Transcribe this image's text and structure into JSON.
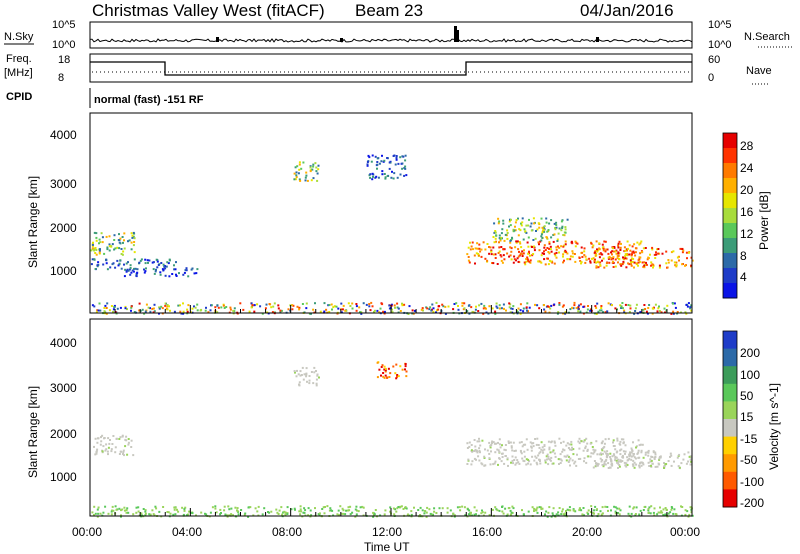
{
  "header": {
    "station": "Christmas Valley West (fitACF)",
    "beam": "Beam 23",
    "date": "04/Jan/2016"
  },
  "top_panels": {
    "nsky_label": "N.Sky",
    "nsearch_label": "N.Search",
    "noise_ticks_left": [
      "10^5",
      "10^0"
    ],
    "noise_ticks_right": [
      "10^5",
      "10^0"
    ],
    "freq_label": "Freq.",
    "freq_unit": "[MHz]",
    "freq_ticks": [
      "18",
      "8"
    ],
    "nave_ticks": [
      "60",
      "0"
    ],
    "nave_label": "Nave",
    "cpid_label": "CPID",
    "cpid_text": "normal (fast) -151 RF"
  },
  "power_panel": {
    "ylabel": "Slant Range [km]",
    "yticks": [
      "4000",
      "3000",
      "2000",
      "1000"
    ],
    "cbar_label": "Power [dB]",
    "cbar_ticks": [
      "28",
      "24",
      "20",
      "16",
      "12",
      "8",
      "4"
    ],
    "cbar_colors": [
      "#e60000",
      "#ff3300",
      "#ff7a00",
      "#ffb000",
      "#e6e600",
      "#a8dc3c",
      "#5ac85a",
      "#3c9c78",
      "#2c6aa8",
      "#1e3cc8",
      "#0a14e6"
    ]
  },
  "velocity_panel": {
    "ylabel": "Slant Range [km]",
    "yticks": [
      "4000",
      "3000",
      "2000",
      "1000"
    ],
    "cbar_label": "Velocity [m s^-1]",
    "cbar_ticks": [
      "200",
      "100",
      "50",
      "15",
      "-15",
      "-50",
      "-100",
      "-200"
    ],
    "cbar_colors": [
      "#1e3cc8",
      "#2c6aa8",
      "#3c9c5a",
      "#5ac85a",
      "#9ad45a",
      "#c8c8c0",
      "#ffd000",
      "#ff9a00",
      "#ff5a00",
      "#e60000"
    ]
  },
  "time_axis": {
    "ticks": [
      "00:00",
      "04:00",
      "08:00",
      "12:00",
      "16:00",
      "20:00",
      "00:00"
    ],
    "label": "Time UT"
  },
  "chart_data": {
    "type": "heatmap",
    "x_range_hours": [
      0,
      24
    ],
    "y_range_km": [
      180,
      4500
    ],
    "power_blobs": [
      {
        "t": 0.9,
        "r": 1700,
        "dt": 0.9,
        "dr": 250,
        "level": "mid"
      },
      {
        "t": 1.6,
        "r": 1250,
        "dt": 1.8,
        "dr": 120,
        "level": "low"
      },
      {
        "t": 2.8,
        "r": 1080,
        "dt": 1.5,
        "dr": 90,
        "level": "low"
      },
      {
        "t": 8.6,
        "r": 3250,
        "dt": 0.5,
        "dr": 220,
        "level": "mid"
      },
      {
        "t": 11.8,
        "r": 3350,
        "dt": 0.8,
        "dr": 260,
        "level": "low"
      },
      {
        "t": 18.5,
        "r": 1500,
        "dt": 3.5,
        "dr": 250,
        "level": "high"
      },
      {
        "t": 22.0,
        "r": 1400,
        "dt": 2.0,
        "dr": 220,
        "level": "high"
      },
      {
        "t": 17.5,
        "r": 2000,
        "dt": 1.5,
        "dr": 250,
        "level": "mid"
      },
      {
        "t": 12.0,
        "r": 300,
        "dt": 12.0,
        "dr": 120,
        "level": "ground"
      }
    ],
    "velocity_blobs": [
      {
        "t": 0.9,
        "r": 1750,
        "dt": 0.8,
        "dr": 220,
        "v": 0
      },
      {
        "t": 8.6,
        "r": 3250,
        "dt": 0.5,
        "dr": 200,
        "v": 0
      },
      {
        "t": 12.0,
        "r": 3400,
        "dt": 0.6,
        "dr": 180,
        "v": -80
      },
      {
        "t": 18.5,
        "r": 1600,
        "dt": 3.5,
        "dr": 300,
        "v": 0
      },
      {
        "t": 22.0,
        "r": 1450,
        "dt": 2.0,
        "dr": 200,
        "v": 0
      },
      {
        "t": 12.0,
        "r": 300,
        "dt": 12.0,
        "dr": 120,
        "v": 30
      }
    ]
  }
}
